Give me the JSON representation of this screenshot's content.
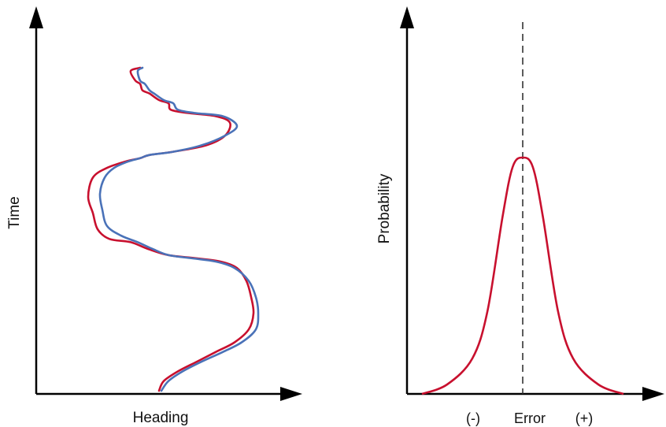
{
  "colors": {
    "axis": "#000000",
    "red": "#c8102e",
    "blue": "#4a72b8",
    "dash": "#333333"
  },
  "chart_data": [
    {
      "type": "line",
      "title": "",
      "xlabel": "Heading",
      "ylabel": "Time",
      "grid": false,
      "series": [
        {
          "color": "#c8102e",
          "points": [
            [
              0.52,
              0.0
            ],
            [
              0.54,
              0.03
            ],
            [
              0.6,
              0.06
            ],
            [
              0.68,
              0.09
            ],
            [
              0.76,
              0.12
            ],
            [
              0.84,
              0.15
            ],
            [
              0.9,
              0.19
            ],
            [
              0.92,
              0.24
            ],
            [
              0.91,
              0.29
            ],
            [
              0.89,
              0.34
            ],
            [
              0.85,
              0.38
            ],
            [
              0.78,
              0.4
            ],
            [
              0.68,
              0.41
            ],
            [
              0.56,
              0.42
            ],
            [
              0.47,
              0.44
            ],
            [
              0.4,
              0.46
            ],
            [
              0.31,
              0.47
            ],
            [
              0.26,
              0.5
            ],
            [
              0.24,
              0.55
            ],
            [
              0.22,
              0.6
            ],
            [
              0.24,
              0.66
            ],
            [
              0.3,
              0.69
            ],
            [
              0.38,
              0.71
            ],
            [
              0.44,
              0.72
            ],
            [
              0.48,
              0.73
            ],
            [
              0.58,
              0.74
            ],
            [
              0.72,
              0.76
            ],
            [
              0.8,
              0.79
            ],
            [
              0.82,
              0.83
            ],
            [
              0.76,
              0.85
            ],
            [
              0.64,
              0.86
            ],
            [
              0.57,
              0.87
            ],
            [
              0.56,
              0.89
            ],
            [
              0.52,
              0.9
            ],
            [
              0.48,
              0.92
            ],
            [
              0.45,
              0.93
            ],
            [
              0.44,
              0.95
            ],
            [
              0.42,
              0.96
            ],
            [
              0.4,
              0.99
            ],
            [
              0.44,
              1.0
            ]
          ]
        },
        {
          "color": "#4a72b8",
          "points": [
            [
              0.53,
              0.0
            ],
            [
              0.56,
              0.03
            ],
            [
              0.62,
              0.06
            ],
            [
              0.7,
              0.09
            ],
            [
              0.79,
              0.12
            ],
            [
              0.87,
              0.15
            ],
            [
              0.93,
              0.19
            ],
            [
              0.94,
              0.24
            ],
            [
              0.93,
              0.29
            ],
            [
              0.9,
              0.34
            ],
            [
              0.84,
              0.38
            ],
            [
              0.76,
              0.4
            ],
            [
              0.66,
              0.41
            ],
            [
              0.56,
              0.42
            ],
            [
              0.49,
              0.44
            ],
            [
              0.43,
              0.46
            ],
            [
              0.36,
              0.48
            ],
            [
              0.3,
              0.51
            ],
            [
              0.28,
              0.56
            ],
            [
              0.27,
              0.61
            ],
            [
              0.29,
              0.66
            ],
            [
              0.33,
              0.69
            ],
            [
              0.39,
              0.71
            ],
            [
              0.44,
              0.72
            ],
            [
              0.48,
              0.73
            ],
            [
              0.58,
              0.74
            ],
            [
              0.7,
              0.76
            ],
            [
              0.8,
              0.79
            ],
            [
              0.85,
              0.82
            ],
            [
              0.79,
              0.85
            ],
            [
              0.67,
              0.86
            ],
            [
              0.6,
              0.87
            ],
            [
              0.58,
              0.89
            ],
            [
              0.54,
              0.9
            ],
            [
              0.5,
              0.92
            ],
            [
              0.48,
              0.93
            ],
            [
              0.46,
              0.95
            ],
            [
              0.44,
              0.96
            ],
            [
              0.43,
              0.99
            ],
            [
              0.45,
              1.0
            ]
          ]
        }
      ]
    },
    {
      "type": "line",
      "title": "",
      "xlabel": "Error",
      "ylabel": "Probability",
      "x_tick_labels": [
        "(-)",
        "Error",
        "(+)"
      ],
      "grid": false,
      "reference_line": {
        "x": 0,
        "style": "dashed"
      },
      "series": [
        {
          "color": "#c8102e",
          "shape": "bell",
          "x": [
            -1,
            -0.75,
            -0.5,
            -0.35,
            -0.2,
            -0.1,
            0,
            0.1,
            0.2,
            0.35,
            0.5,
            0.75,
            1
          ],
          "y": [
            0.0,
            0.04,
            0.15,
            0.35,
            0.75,
            0.96,
            1.0,
            0.96,
            0.75,
            0.35,
            0.15,
            0.04,
            0.0
          ]
        }
      ]
    }
  ]
}
